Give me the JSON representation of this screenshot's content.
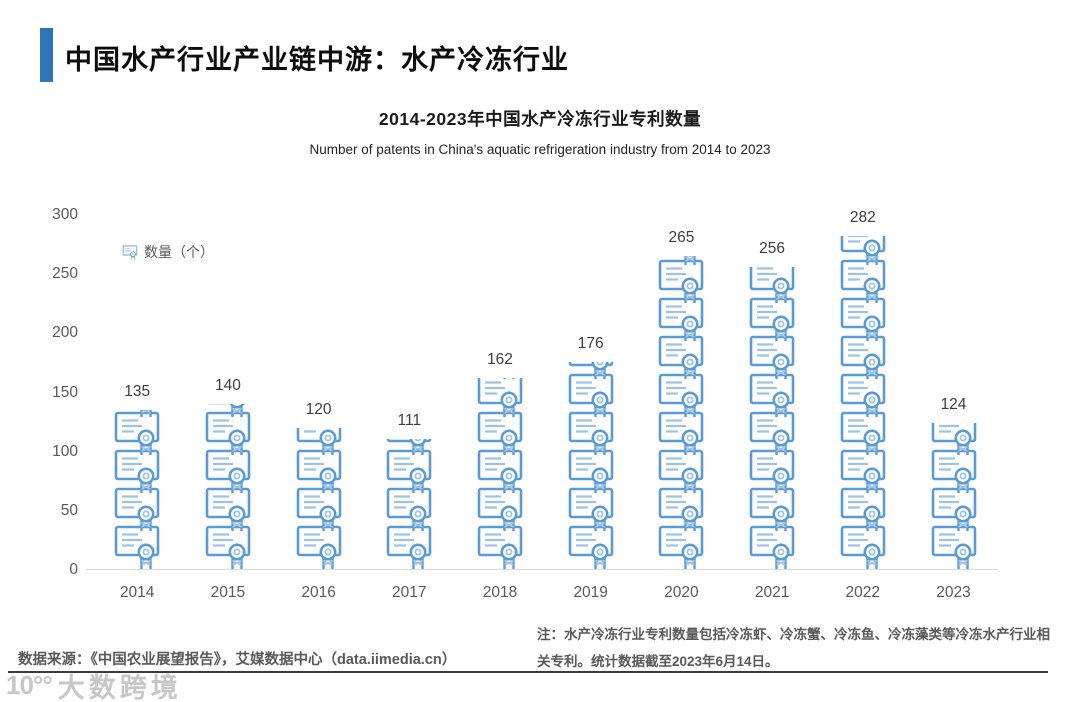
{
  "header": {
    "title": "中国水产行业产业链中游：水产冷冻行业"
  },
  "colors": {
    "accent": "#2E75B6",
    "icon_main": "#5B9BD5",
    "icon_light": "#9DC3E6",
    "axis_text": "#595959",
    "baseline": "#d9d9d9"
  },
  "chart_data": {
    "type": "bar",
    "pictogram": "certificate-icon",
    "title": "2014-2023年中国水产冷冻行业专利数量",
    "subtitle": "Number of patents in China's aquatic refrigeration industry from 2014 to 2023",
    "legend": {
      "label": "数量（个）",
      "position": "top-left"
    },
    "categories": [
      "2014",
      "2015",
      "2016",
      "2017",
      "2018",
      "2019",
      "2020",
      "2021",
      "2022",
      "2023"
    ],
    "values": [
      135,
      140,
      120,
      111,
      162,
      176,
      265,
      256,
      282,
      124
    ],
    "xlabel": "",
    "ylabel": "",
    "ylim": [
      0,
      300
    ],
    "yticks": [
      0,
      50,
      100,
      150,
      200,
      250,
      300
    ],
    "grid": false,
    "bar_color": "#5B9BD5"
  },
  "footer": {
    "source": "数据来源：《中国农业展望报告》，艾媒数据中心（data.iimedia.cn）",
    "note": "注：水产冷冻行业专利数量包括冷冻虾、冷冻蟹、冷冻鱼、冷冻藻类等冷冻水产行业相关专利。统计数据截至2023年6月14日。",
    "watermark": {
      "logo": "10°°",
      "text": "大数跨境"
    }
  }
}
